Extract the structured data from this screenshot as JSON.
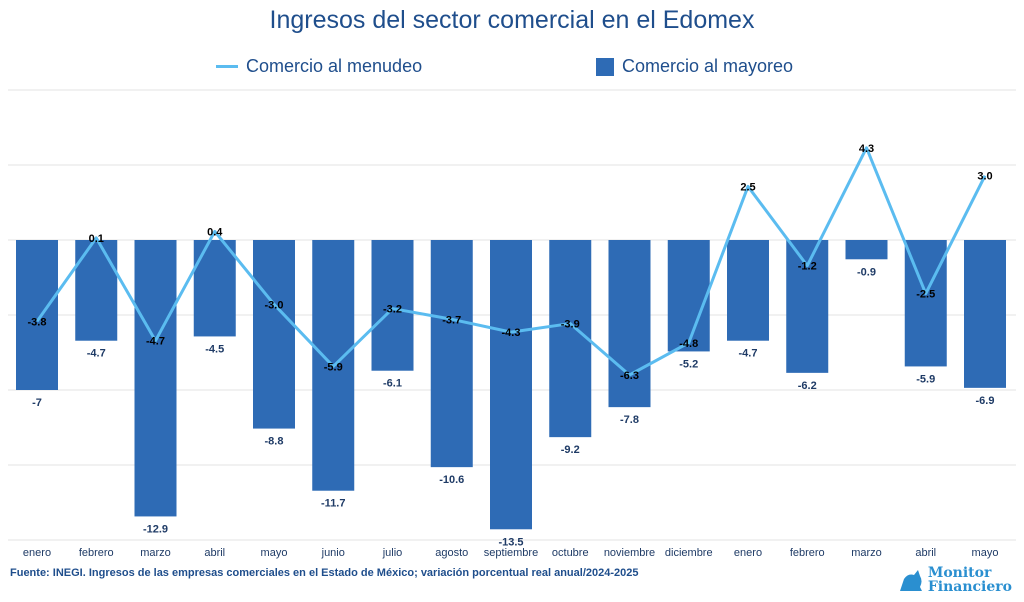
{
  "chart_data": {
    "type": "bar+line",
    "title": "Ingresos del sector comercial en el Edomex",
    "categories": [
      "enero",
      "febrero",
      "marzo",
      "abril",
      "mayo",
      "junio",
      "julio",
      "agosto",
      "septiembre",
      "octubre",
      "noviembre",
      "diciembre",
      "enero",
      "febrero",
      "marzo",
      "abril",
      "mayo"
    ],
    "series": [
      {
        "name": "Comercio al menudeo",
        "kind": "line",
        "color": "#5bbcf0",
        "values": [
          -3.8,
          0.1,
          -4.7,
          0.4,
          -3.0,
          -5.9,
          -3.2,
          -3.7,
          -4.3,
          -3.9,
          -6.3,
          -4.8,
          2.5,
          -1.2,
          4.3,
          -2.5,
          3.0
        ],
        "labels": [
          "-3.8",
          "0.1",
          "-4.7",
          "0.4",
          "-3.0",
          "-5.9",
          "-3.2",
          "-3.7",
          "-4.3",
          "-3.9",
          "-6.3",
          "-4.8",
          "2.5",
          "-1.2",
          "4.3",
          "-2.5",
          "3.0"
        ]
      },
      {
        "name": "Comercio al mayoreo",
        "kind": "bar",
        "color": "#2e6bb5",
        "values": [
          -7,
          -4.7,
          -12.9,
          -4.5,
          -8.8,
          -11.7,
          -6.1,
          -10.6,
          -13.5,
          -9.2,
          -7.8,
          -5.2,
          -4.7,
          -6.2,
          -0.9,
          -5.9,
          -6.9
        ],
        "labels": [
          "-7",
          "-4.7",
          "-12.9",
          "-4.5",
          "-8.8",
          "-11.7",
          "-6.1",
          "-10.6",
          "-13.5",
          "-9.2",
          "-7.8",
          "-5.2",
          "-4.7",
          "-6.2",
          "-0.9",
          "-5.9",
          "-6.9"
        ]
      }
    ],
    "ylim": [
      -14,
      7
    ],
    "grid": true,
    "legend": "top"
  },
  "source": "Fuente: INEGI. Ingresos de las empresas comerciales en el Estado de México; variación porcentual real anual/2024-2025",
  "logo": {
    "line1": "Monitor",
    "line2": "Financiero"
  }
}
